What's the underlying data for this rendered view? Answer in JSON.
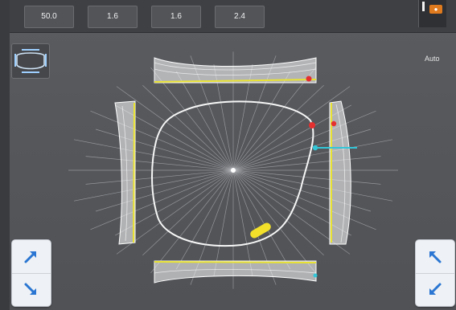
{
  "toolbar": {
    "values": [
      "50.0",
      "1.6",
      "1.6",
      "2.4"
    ]
  },
  "mode_label": "Auto",
  "colors": {
    "bevel_line": "#e8e233",
    "marker_red": "#e53030",
    "marker_cyan": "#33c6d8",
    "grip": "#f2e02a",
    "panel_bg": "#55575b",
    "arrow_blue": "#2a76d2"
  },
  "icons": {
    "frame_button": "lens-frame-icon",
    "rotate_cw_up": "arrow-up-right-icon",
    "rotate_ccw_down": "arrow-down-right-icon",
    "rotate_ccw_up": "arrow-up-left-icon",
    "rotate_cw_down": "arrow-down-left-icon"
  }
}
